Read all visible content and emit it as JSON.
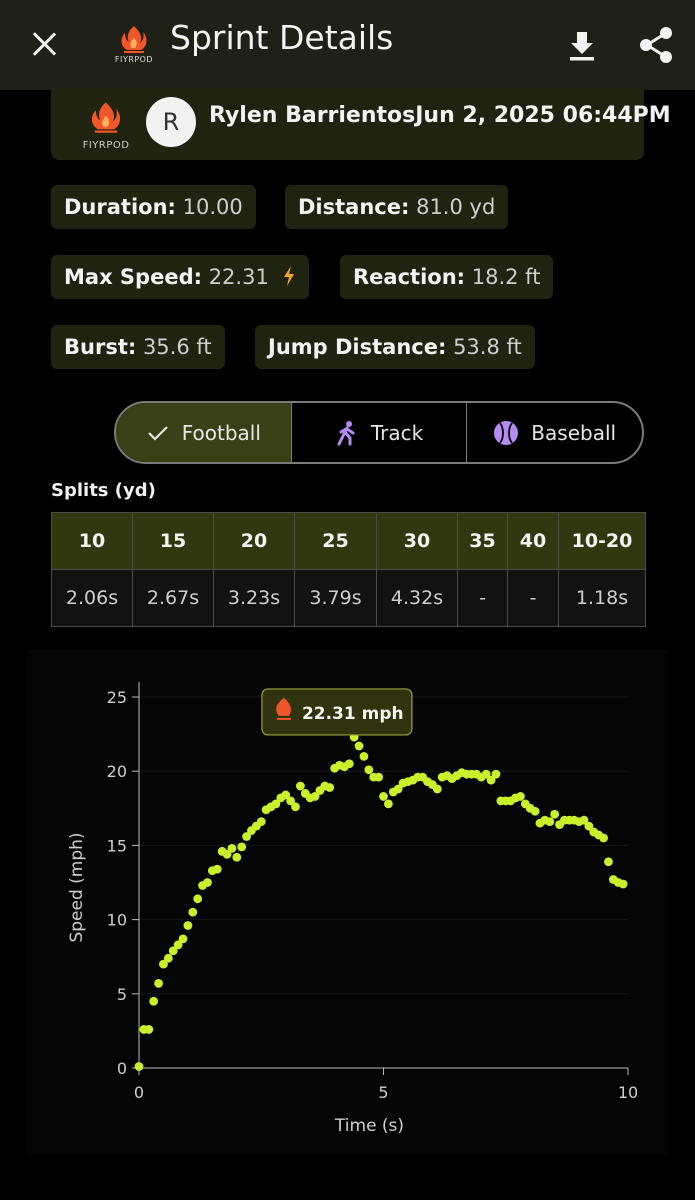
{
  "app_bar": {
    "title": "Sprint Details",
    "brand": "FIYRPOD"
  },
  "header": {
    "brand": "FIYRPOD",
    "avatar_initial": "R",
    "athlete_name": "Rylen Barrientos",
    "datetime": "Jun 2, 2025 06:44PM"
  },
  "stats": {
    "duration": {
      "label": "Duration:",
      "value": "10.00"
    },
    "distance": {
      "label": "Distance:",
      "value": "81.0 yd"
    },
    "max_speed": {
      "label": "Max Speed:",
      "value": "22.31"
    },
    "reaction": {
      "label": "Reaction:",
      "value": "18.2 ft"
    },
    "burst": {
      "label": "Burst:",
      "value": "35.6 ft"
    },
    "jump_distance": {
      "label": "Jump Distance:",
      "value": "53.8 ft"
    }
  },
  "sport_tabs": [
    {
      "label": "Football",
      "icon": "check-icon",
      "selected": true
    },
    {
      "label": "Track",
      "icon": "runner-icon",
      "selected": false
    },
    {
      "label": "Baseball",
      "icon": "baseball-icon",
      "selected": false
    }
  ],
  "splits": {
    "title": "Splits (yd)",
    "headers": [
      "10",
      "15",
      "20",
      "25",
      "30",
      "35",
      "40",
      "10-20"
    ],
    "values": [
      "2.06s",
      "2.67s",
      "3.23s",
      "3.79s",
      "4.32s",
      "-",
      "-",
      "1.18s"
    ]
  },
  "colors": {
    "accent": "#c9f02a",
    "card": "#20230f",
    "tab_active": "#3a4016",
    "table_header": "#31380f",
    "flame": "#f0562a"
  },
  "chart_data": {
    "type": "scatter",
    "xlabel": "Time (s)",
    "ylabel": "Speed (mph)",
    "xlim": [
      0,
      10
    ],
    "ylim": [
      0,
      25
    ],
    "xticks": [
      0,
      5,
      10
    ],
    "yticks": [
      0,
      5,
      10,
      15,
      20,
      25
    ],
    "grid": true,
    "annotation": {
      "label": "22.31 mph",
      "x": 4.6,
      "y": 22.31
    },
    "series": [
      {
        "x": [
          0.0,
          0.1,
          0.2,
          0.3,
          0.4,
          0.5,
          0.6,
          0.7,
          0.8,
          0.9,
          1.0,
          1.1,
          1.2,
          1.3,
          1.4,
          1.5,
          1.6,
          1.7,
          1.8,
          1.9,
          2.0,
          2.1,
          2.2,
          2.3,
          2.4,
          2.5,
          2.6,
          2.7,
          2.8,
          2.9,
          3.0,
          3.1,
          3.2,
          3.3,
          3.4,
          3.5,
          3.6,
          3.7,
          3.8,
          3.9,
          4.0,
          4.1,
          4.2,
          4.3,
          4.4,
          4.5,
          4.6,
          4.7,
          4.8,
          4.9,
          5.0,
          5.1,
          5.2,
          5.3,
          5.4,
          5.5,
          5.6,
          5.7,
          5.8,
          5.9,
          6.0,
          6.1,
          6.2,
          6.3,
          6.4,
          6.5,
          6.6,
          6.7,
          6.8,
          6.9,
          7.0,
          7.1,
          7.2,
          7.3,
          7.4,
          7.5,
          7.6,
          7.7,
          7.8,
          7.9,
          8.0,
          8.1,
          8.2,
          8.3,
          8.4,
          8.5,
          8.6,
          8.7,
          8.8,
          8.9,
          9.0,
          9.1,
          9.2,
          9.3,
          9.4,
          9.5,
          9.6,
          9.7,
          9.8,
          9.9
        ],
        "y": [
          0.1,
          2.6,
          2.6,
          4.5,
          5.7,
          7.0,
          7.4,
          7.9,
          8.3,
          8.7,
          9.6,
          10.5,
          11.4,
          12.3,
          12.5,
          13.3,
          13.4,
          14.6,
          14.4,
          14.8,
          14.2,
          14.9,
          15.6,
          16.0,
          16.3,
          16.6,
          17.4,
          17.6,
          17.8,
          18.2,
          18.4,
          18.0,
          17.6,
          19.0,
          18.5,
          18.2,
          18.3,
          18.7,
          19.0,
          18.9,
          20.2,
          20.4,
          20.3,
          20.5,
          22.3,
          21.7,
          21.0,
          20.1,
          19.6,
          19.6,
          18.3,
          17.8,
          18.6,
          18.8,
          19.2,
          19.3,
          19.4,
          19.6,
          19.6,
          19.3,
          19.1,
          18.8,
          19.6,
          19.7,
          19.5,
          19.7,
          19.9,
          19.8,
          19.8,
          19.8,
          19.6,
          19.8,
          19.4,
          19.8,
          18.0,
          18.0,
          18.0,
          18.2,
          18.3,
          17.8,
          17.5,
          17.3,
          16.5,
          16.7,
          16.6,
          17.1,
          16.4,
          16.7,
          16.7,
          16.7,
          16.6,
          16.7,
          16.3,
          15.9,
          15.7,
          15.5,
          13.9,
          12.7,
          12.5,
          12.4
        ]
      }
    ]
  }
}
